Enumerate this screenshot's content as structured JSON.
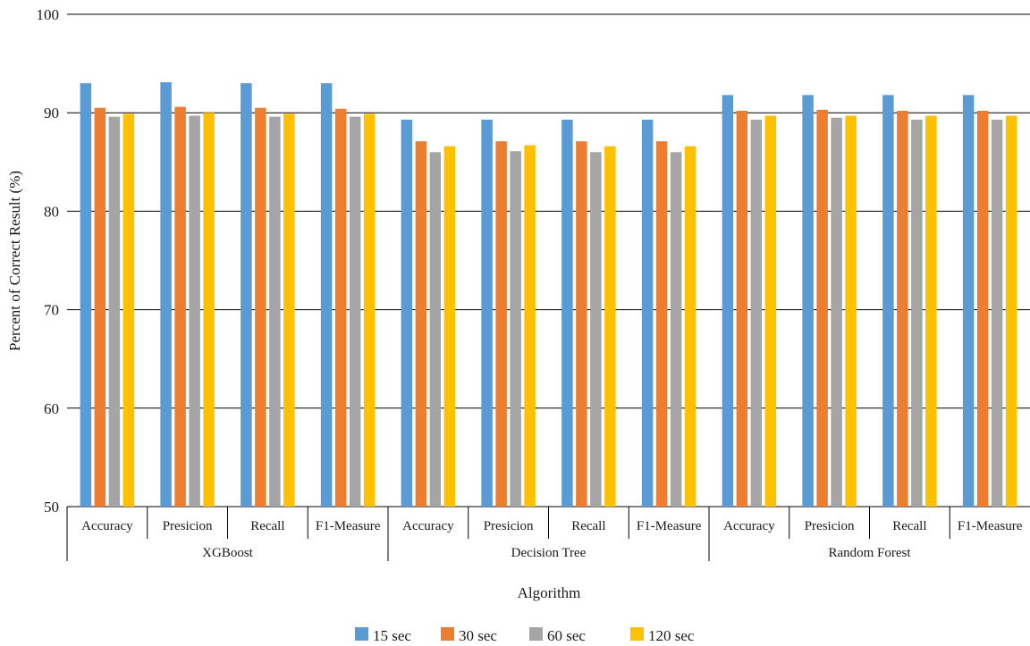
{
  "chart_data": {
    "type": "bar",
    "ylabel": "Percent of Correct Result (%)",
    "xlabel": "Algorithm",
    "ylim": [
      50,
      100
    ],
    "yticks": [
      50,
      60,
      70,
      80,
      90,
      100
    ],
    "grid": true,
    "legend_position": "bottom",
    "groups": [
      {
        "name": "XGBoost",
        "categories": [
          "Accuracy",
          "Presicion",
          "Recall",
          "F1-Measure"
        ]
      },
      {
        "name": "Decision Tree",
        "categories": [
          "Accuracy",
          "Presicion",
          "Recall",
          "F1-Measure"
        ]
      },
      {
        "name": "Random Forest",
        "categories": [
          "Accuracy",
          "Presicion",
          "Recall",
          "F1-Measure"
        ]
      }
    ],
    "series": [
      {
        "name": "15 sec",
        "color": "#5b9bd5",
        "values": [
          93.0,
          93.1,
          93.0,
          93.0,
          89.3,
          89.3,
          89.3,
          89.3,
          91.8,
          91.8,
          91.8,
          91.8
        ]
      },
      {
        "name": "30 sec",
        "color": "#ed7d31",
        "values": [
          90.5,
          90.6,
          90.5,
          90.4,
          87.1,
          87.1,
          87.1,
          87.1,
          90.2,
          90.3,
          90.2,
          90.2
        ]
      },
      {
        "name": "60 sec",
        "color": "#a5a5a5",
        "values": [
          89.6,
          89.7,
          89.6,
          89.6,
          86.0,
          86.1,
          86.0,
          86.0,
          89.3,
          89.5,
          89.3,
          89.3
        ]
      },
      {
        "name": "120 sec",
        "color": "#ffc000",
        "values": [
          89.9,
          90.0,
          89.9,
          89.9,
          86.6,
          86.7,
          86.6,
          86.6,
          89.7,
          89.7,
          89.7,
          89.7
        ]
      }
    ]
  }
}
